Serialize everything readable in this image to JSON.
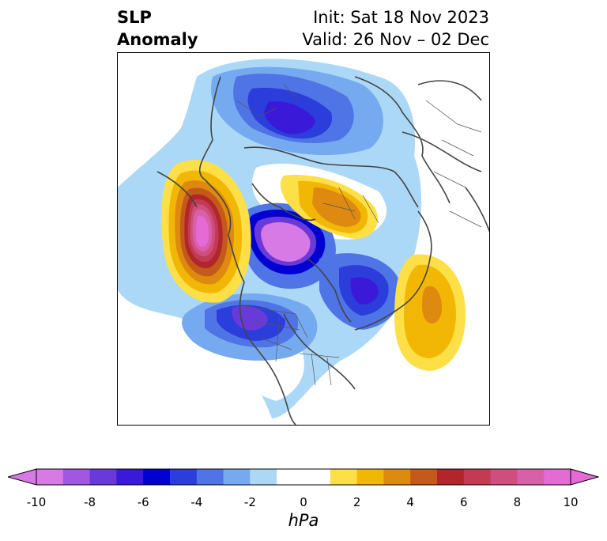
{
  "title": {
    "left_line1": "SLP",
    "left_line2": "Anomaly",
    "init": "Init: Sat 18 Nov 2023",
    "valid": "Valid: 26 Nov – 02 Dec"
  },
  "colorbar": {
    "unit": "hPa",
    "ticks": [
      "-10",
      "-8",
      "-6",
      "-4",
      "-2",
      "0",
      "2",
      "4",
      "6",
      "8",
      "10"
    ],
    "range": [
      -10,
      10
    ],
    "colors": [
      "#d77ae6",
      "#a157e0",
      "#6a3ad9",
      "#3a1ad8",
      "#0000d0",
      "#2b3ddb",
      "#4f74e6",
      "#76aaf0",
      "#acd8f7",
      "#ffffff",
      "#ffffff",
      "#fde047",
      "#f2b705",
      "#de8a10",
      "#c45a1a",
      "#b0262a",
      "#c23a54",
      "#ce4f7e",
      "#d860a8",
      "#e46ad6"
    ],
    "extend_low_color": "#d77ae6",
    "extend_high_color": "#e46ad6"
  },
  "map": {
    "projection": "polar-stereographic-north",
    "background": "#ffffff",
    "coastline_color": "#444444"
  }
}
